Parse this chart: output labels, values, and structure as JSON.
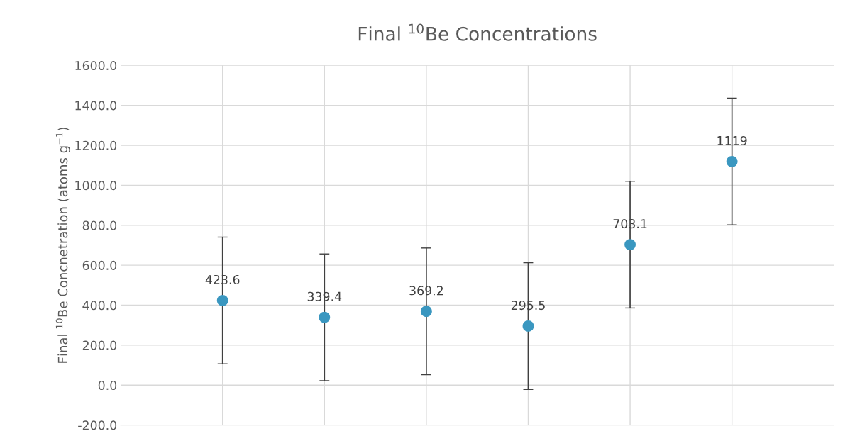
{
  "chart_data": {
    "type": "scatter",
    "title": "Final $^{10}$Be Concentrations",
    "ylabel": "Final $^{10}$Be Concnetration (atoms g$^{−1}$)",
    "categories": [
      null,
      null,
      null,
      null,
      null,
      null
    ],
    "values": [
      423.6,
      339.4,
      369.2,
      295.5,
      703.1,
      1119
    ],
    "errors": [
      317,
      317,
      317,
      317,
      317,
      317
    ],
    "color": "#3a97c0",
    "marker": "circle",
    "data_labels": true,
    "grid": true,
    "tick_labels": "y",
    "ylim": [
      -200,
      1600
    ],
    "yticks": [
      {
        "value": -200,
        "label": "-200.0"
      },
      {
        "value": 0,
        "label": "0.0"
      },
      {
        "value": 200,
        "label": "200.0"
      },
      {
        "value": 400,
        "label": "400.0"
      },
      {
        "value": 600,
        "label": "600.0"
      },
      {
        "value": 800,
        "label": "800.0"
      },
      {
        "value": 1000,
        "label": "1000.0"
      },
      {
        "value": 1200,
        "label": "1200.0"
      },
      {
        "value": 1400,
        "label": "1400.0"
      },
      {
        "value": 1600,
        "label": "1600.0"
      }
    ]
  }
}
